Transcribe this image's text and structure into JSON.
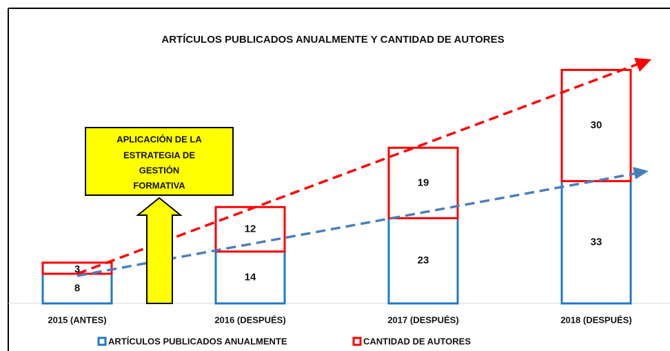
{
  "chart_data": {
    "type": "stacked_bar",
    "title": "ARTÍCULOS PUBLICADOS ANUALMENTE Y CANTIDAD DE AUTORES",
    "categories": [
      "2015 (ANTES)",
      "2016 (DESPUÉS)",
      "2017 (DESPUÉS)",
      "2018 (DESPUÉS)"
    ],
    "series": [
      {
        "name": "ARTÍCULOS PUBLICADOS ANUALMENTE",
        "color": "#1f78c8",
        "values": [
          8,
          14,
          23,
          33
        ]
      },
      {
        "name": "CANTIDAD DE AUTORES",
        "color": "#ff0000",
        "values": [
          3,
          12,
          19,
          30
        ]
      }
    ],
    "ylim": [
      0,
      80
    ],
    "annotation": [
      "APLICACIÓN DE LA",
      "ESTRATEGIA DE",
      "GESTIÓN",
      "FORMATIVA"
    ]
  }
}
